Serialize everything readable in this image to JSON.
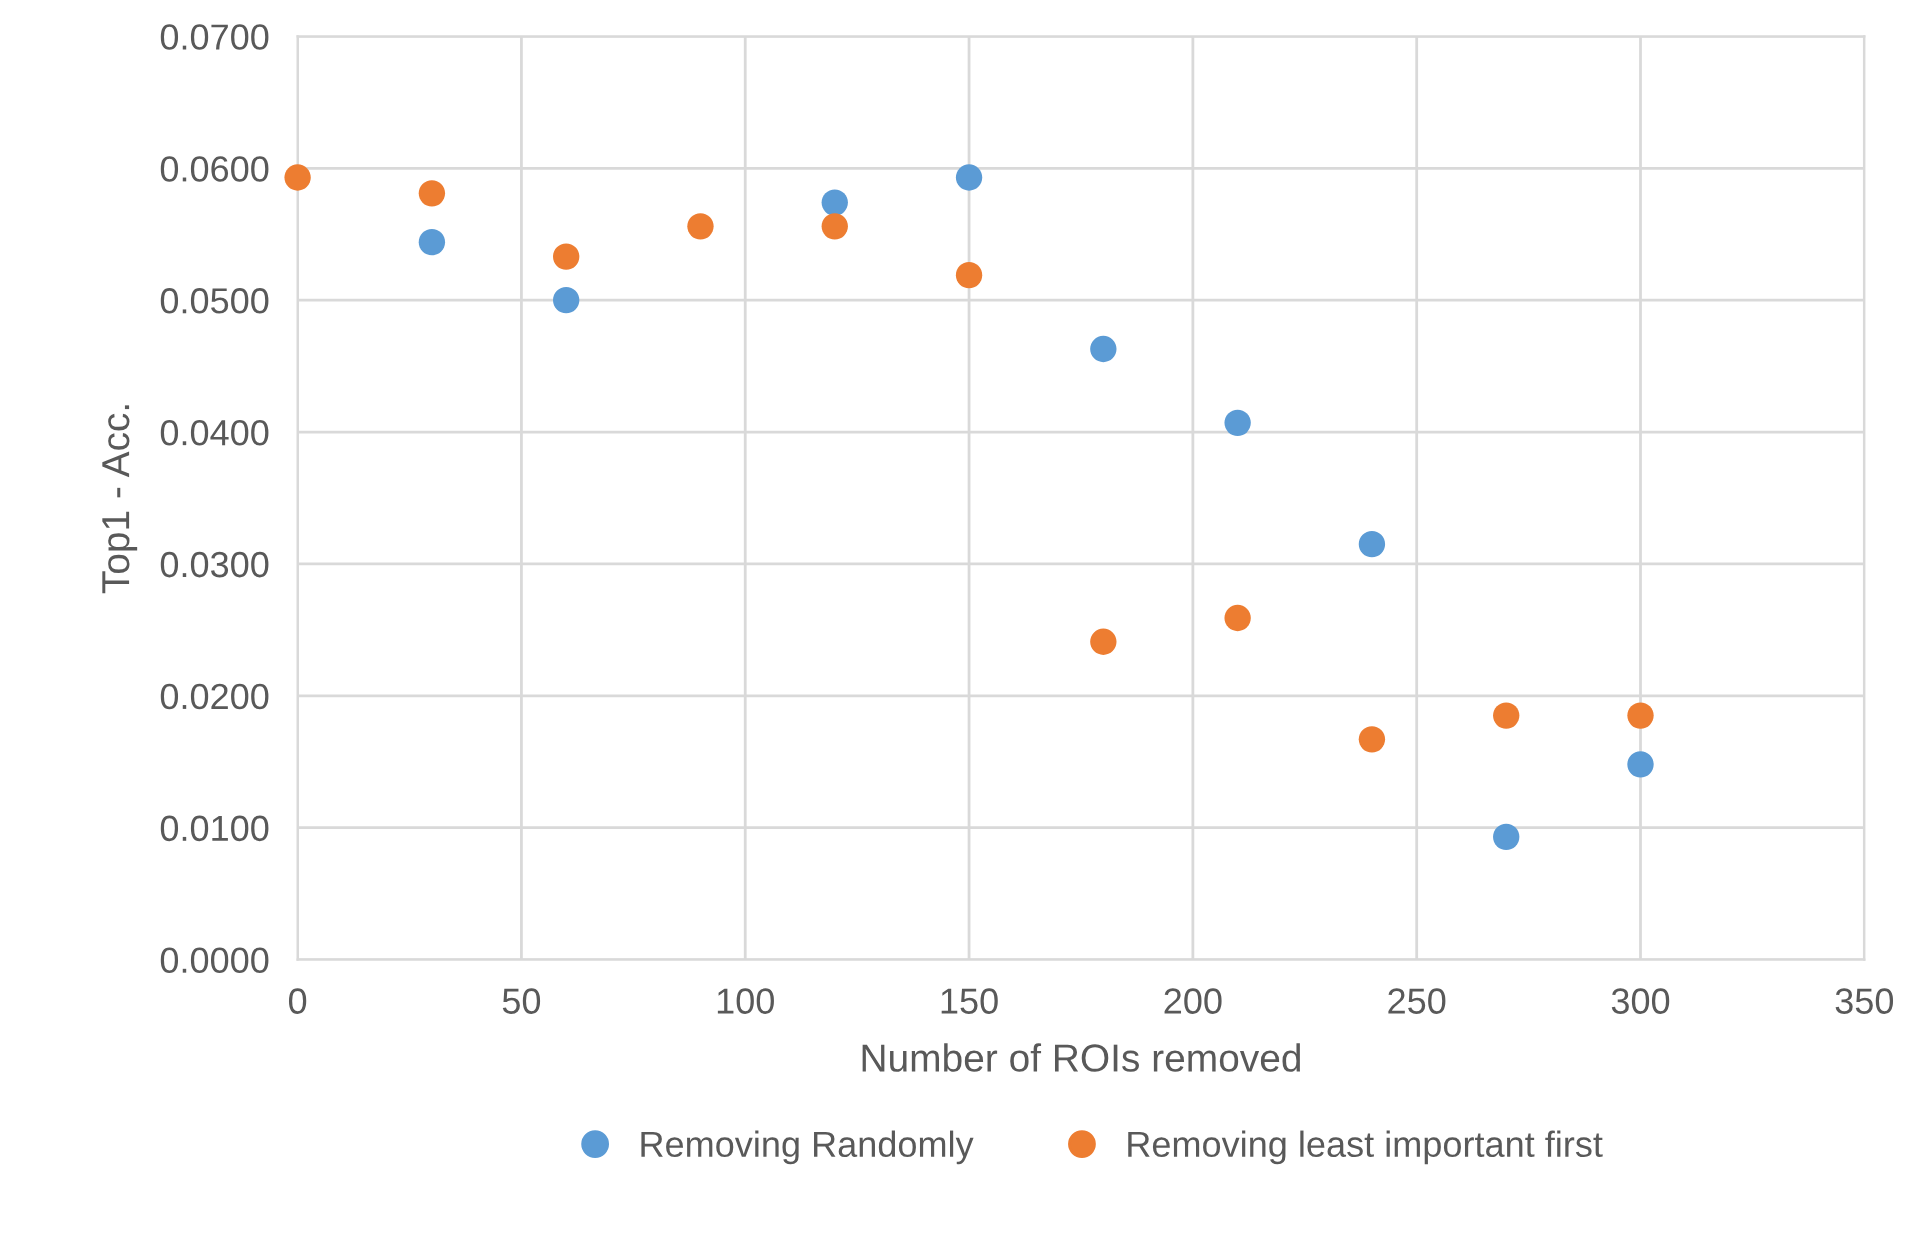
{
  "chart_data": {
    "type": "scatter",
    "xlabel": "Number of ROIs removed",
    "ylabel": "Top1 - Acc.",
    "x": [
      0,
      30,
      60,
      90,
      120,
      150,
      180,
      210,
      240,
      270,
      300
    ],
    "series": [
      {
        "name": "Removing Randomly",
        "color": "#5b9bd5",
        "values": [
          null,
          0.0544,
          0.05,
          null,
          0.0574,
          0.0593,
          0.0463,
          0.0407,
          0.0315,
          0.0093,
          0.0148
        ]
      },
      {
        "name": "Removing least important first",
        "color": "#ed7d31",
        "values": [
          0.0593,
          0.0581,
          0.0533,
          0.0556,
          0.0556,
          0.0519,
          0.0241,
          0.0259,
          0.0167,
          0.0185,
          0.0185
        ]
      }
    ],
    "xlim": [
      0,
      350
    ],
    "xticks": [
      0,
      50,
      100,
      150,
      200,
      250,
      300,
      350
    ],
    "ylim": [
      0,
      0.07
    ],
    "yticks": [
      {
        "value": 0,
        "label": "0.0000"
      },
      {
        "value": 0.01,
        "label": "0.0100"
      },
      {
        "value": 0.02,
        "label": "0.0200"
      },
      {
        "value": 0.03,
        "label": "0.0300"
      },
      {
        "value": 0.04,
        "label": "0.0400"
      },
      {
        "value": 0.05,
        "label": "0.0500"
      },
      {
        "value": 0.06,
        "label": "0.0600"
      },
      {
        "value": 0.07,
        "label": "0.0700"
      }
    ],
    "grid": true,
    "legend": "bottom",
    "marker": "circle"
  }
}
